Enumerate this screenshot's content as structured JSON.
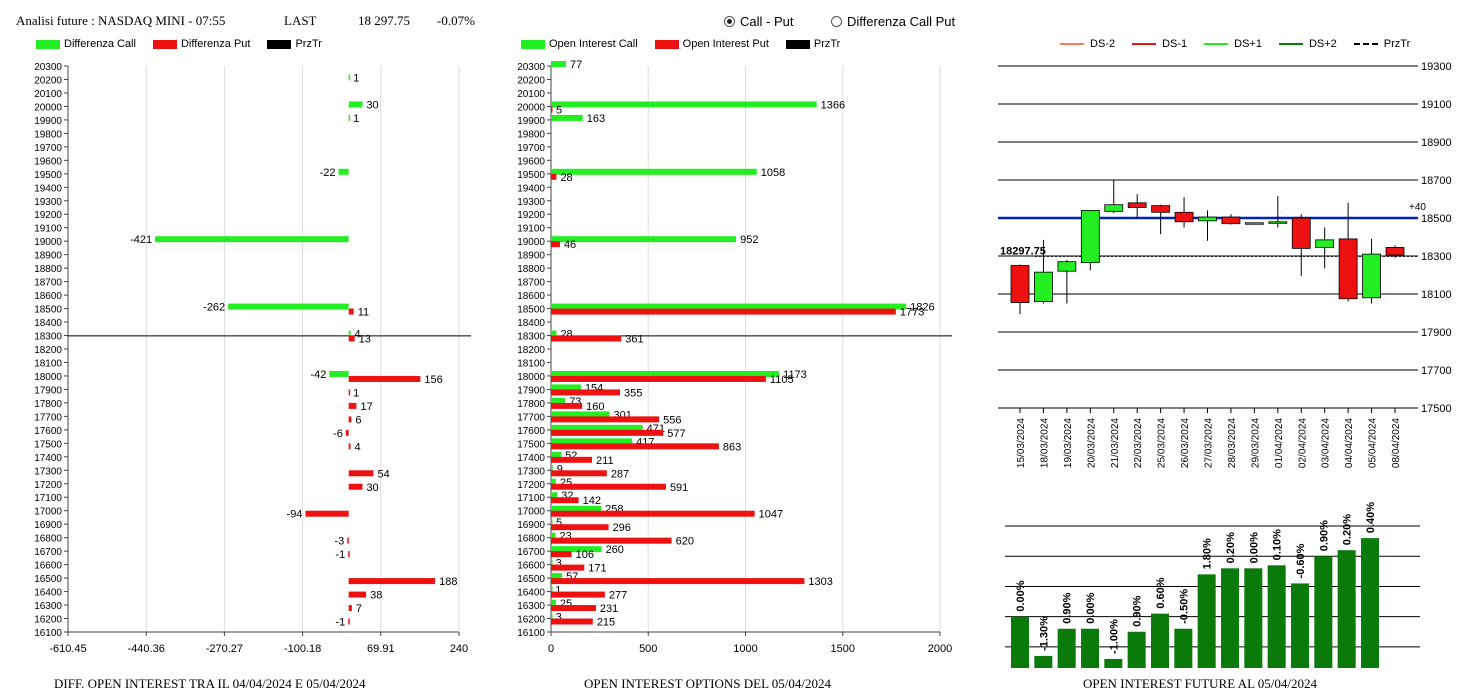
{
  "header": {
    "title": "Analisi future : NASDAQ MINI - 07:55",
    "last_label": "LAST",
    "last_value": "18 297.75",
    "change": "-0.07%"
  },
  "toggle": {
    "options": [
      {
        "label": "Call - Put",
        "selected": true
      },
      {
        "label": "Differenza Call Put",
        "selected": false
      }
    ]
  },
  "colors": {
    "call": "#22EE22",
    "put": "#EE1111",
    "price": "#000000",
    "price_line": "#0022BB",
    "future_bar": "#0A7A0A"
  },
  "chart_data": [
    {
      "type": "bar",
      "orientation": "horizontal",
      "title": "DIFF. OPEN INTEREST TRA IL 04/04/2024 E 05/04/2024",
      "legend": [
        "Differenza Call",
        "Differenza Put",
        "PrzTr"
      ],
      "xticks": [
        "-610.45",
        "-440.36",
        "-270.27",
        "-100.18",
        "69.91",
        "240"
      ],
      "xlim": [
        -610.45,
        240
      ],
      "ylim": [
        16100,
        20300
      ],
      "ystep": 100,
      "price": 18297.75,
      "call": [
        {
          "strike": 20200,
          "value": 1
        },
        {
          "strike": 20000,
          "value": 30
        },
        {
          "strike": 19900,
          "value": 1
        },
        {
          "strike": 19500,
          "value": -22
        },
        {
          "strike": 19000,
          "value": -421
        },
        {
          "strike": 18500,
          "value": -262
        },
        {
          "strike": 18300,
          "value": 4
        },
        {
          "strike": 18000,
          "value": -42
        }
      ],
      "put": [
        {
          "strike": 18500,
          "value": 11
        },
        {
          "strike": 18300,
          "value": 13
        },
        {
          "strike": 18000,
          "value": 156
        },
        {
          "strike": 17900,
          "value": 1
        },
        {
          "strike": 17800,
          "value": 17
        },
        {
          "strike": 17700,
          "value": 6
        },
        {
          "strike": 17600,
          "value": -6
        },
        {
          "strike": 17500,
          "value": 4
        },
        {
          "strike": 17300,
          "value": 54
        },
        {
          "strike": 17200,
          "value": 30
        },
        {
          "strike": 17000,
          "value": -94
        },
        {
          "strike": 16800,
          "value": -3
        },
        {
          "strike": 16700,
          "value": -1
        },
        {
          "strike": 16500,
          "value": 188
        },
        {
          "strike": 16400,
          "value": 38
        },
        {
          "strike": 16300,
          "value": 7
        },
        {
          "strike": 16200,
          "value": -1
        }
      ]
    },
    {
      "type": "bar",
      "orientation": "horizontal",
      "title": "OPEN INTEREST OPTIONS DEL 05/04/2024",
      "legend": [
        "Open Interest Call",
        "Open Interest Put",
        "PrzTr"
      ],
      "xticks": [
        "0",
        "500",
        "1000",
        "1500",
        "2000"
      ],
      "xlim": [
        0,
        2000
      ],
      "ylim": [
        16100,
        20300
      ],
      "ystep": 100,
      "price": 18297.75,
      "call": [
        {
          "strike": 20300,
          "value": 77
        },
        {
          "strike": 20000,
          "value": 1366
        },
        {
          "strike": 19900,
          "value": 163
        },
        {
          "strike": 19500,
          "value": 1058
        },
        {
          "strike": 19000,
          "value": 952
        },
        {
          "strike": 18500,
          "value": 1826
        },
        {
          "strike": 18300,
          "value": 28
        },
        {
          "strike": 18000,
          "value": 1173
        },
        {
          "strike": 17900,
          "value": 154
        },
        {
          "strike": 17800,
          "value": 73
        },
        {
          "strike": 17700,
          "value": 301
        },
        {
          "strike": 17600,
          "value": 471
        },
        {
          "strike": 17500,
          "value": 417
        },
        {
          "strike": 17400,
          "value": 52
        },
        {
          "strike": 17300,
          "value": 9
        },
        {
          "strike": 17200,
          "value": 25
        },
        {
          "strike": 17100,
          "value": 32
        },
        {
          "strike": 17000,
          "value": 258
        },
        {
          "strike": 16900,
          "value": 5
        },
        {
          "strike": 16800,
          "value": 23
        },
        {
          "strike": 16700,
          "value": 260
        },
        {
          "strike": 16600,
          "value": 3
        },
        {
          "strike": 16500,
          "value": 57
        },
        {
          "strike": 16400,
          "value": 1
        },
        {
          "strike": 16300,
          "value": 25
        },
        {
          "strike": 16200,
          "value": 3
        }
      ],
      "put": [
        {
          "strike": 20000,
          "value": 5
        },
        {
          "strike": 19500,
          "value": 28
        },
        {
          "strike": 19000,
          "value": 46
        },
        {
          "strike": 18500,
          "value": 1773
        },
        {
          "strike": 18300,
          "value": 361
        },
        {
          "strike": 18000,
          "value": 1105
        },
        {
          "strike": 17900,
          "value": 355
        },
        {
          "strike": 17800,
          "value": 160
        },
        {
          "strike": 17700,
          "value": 556
        },
        {
          "strike": 17600,
          "value": 577
        },
        {
          "strike": 17500,
          "value": 863
        },
        {
          "strike": 17400,
          "value": 211
        },
        {
          "strike": 17300,
          "value": 287
        },
        {
          "strike": 17200,
          "value": 591
        },
        {
          "strike": 17100,
          "value": 142
        },
        {
          "strike": 17000,
          "value": 1047
        },
        {
          "strike": 16900,
          "value": 296
        },
        {
          "strike": 16800,
          "value": 620
        },
        {
          "strike": 16700,
          "value": 106
        },
        {
          "strike": 16600,
          "value": 171
        },
        {
          "strike": 16500,
          "value": 1303
        },
        {
          "strike": 16400,
          "value": 277
        },
        {
          "strike": 16300,
          "value": 231
        },
        {
          "strike": 16200,
          "value": 215
        }
      ]
    },
    {
      "type": "candlestick",
      "legend": [
        "DS-2",
        "DS-1",
        "DS+1",
        "DS+2",
        "PrzTr"
      ],
      "legend_colors": [
        "#F08060",
        "#EE1111",
        "#22EE22",
        "#0A7A0A",
        "#000000"
      ],
      "yticks": [
        "19300",
        "19100",
        "18900",
        "18700",
        "18500",
        "18300",
        "18100",
        "17900",
        "17700",
        "17500"
      ],
      "ylim": [
        17500,
        19300
      ],
      "price_label": "18297.75",
      "price": 18297.75,
      "level": 18500,
      "level_label": "+40",
      "candles": [
        {
          "date": "15/03/2024",
          "open": 18250,
          "close": 18055,
          "high": 18255,
          "low": 17995
        },
        {
          "date": "18/03/2024",
          "open": 18060,
          "close": 18215,
          "high": 18385,
          "low": 18050
        },
        {
          "date": "19/03/2024",
          "open": 18220,
          "close": 18270,
          "high": 18280,
          "low": 18050
        },
        {
          "date": "20/03/2024",
          "open": 18265,
          "close": 18540,
          "high": 18540,
          "low": 18225
        },
        {
          "date": "21/03/2024",
          "open": 18535,
          "close": 18570,
          "high": 18700,
          "low": 18525
        },
        {
          "date": "22/03/2024",
          "open": 18580,
          "close": 18555,
          "high": 18625,
          "low": 18500
        },
        {
          "date": "25/03/2024",
          "open": 18565,
          "close": 18530,
          "high": 18570,
          "low": 18415
        },
        {
          "date": "26/03/2024",
          "open": 18530,
          "close": 18480,
          "high": 18610,
          "low": 18450
        },
        {
          "date": "27/03/2024",
          "open": 18485,
          "close": 18505,
          "high": 18540,
          "low": 18380
        },
        {
          "date": "28/03/2024",
          "open": 18505,
          "close": 18470,
          "high": 18520,
          "low": 18465
        },
        {
          "date": "29/03/2024",
          "open": 18475,
          "close": 18475,
          "high": 18475,
          "low": 18475
        },
        {
          "date": "01/04/2024",
          "open": 18480,
          "close": 18480,
          "high": 18615,
          "low": 18450
        },
        {
          "date": "02/04/2024",
          "open": 18500,
          "close": 18340,
          "high": 18520,
          "low": 18195
        },
        {
          "date": "03/04/2024",
          "open": 18345,
          "close": 18385,
          "high": 18450,
          "low": 18235
        },
        {
          "date": "04/04/2024",
          "open": 18390,
          "close": 18075,
          "high": 18580,
          "low": 18060
        },
        {
          "date": "05/04/2024",
          "open": 18080,
          "close": 18310,
          "high": 18390,
          "low": 18050
        },
        {
          "date": "08/04/2024",
          "open": 18345,
          "close": 18305,
          "high": 18355,
          "low": 18290
        }
      ]
    },
    {
      "type": "bar",
      "title": "OPEN INTEREST FUTURE AL 05/04/2024",
      "values": [
        100.0,
        98.7,
        99.6,
        99.6,
        98.6,
        99.5,
        100.1,
        99.6,
        101.4,
        101.6,
        101.6,
        101.7,
        101.1,
        102.0,
        102.2,
        102.6
      ],
      "ylim": [
        98.3,
        103.2
      ],
      "gridlines": [
        99.0,
        100.0,
        101.0,
        102.0,
        103.0
      ],
      "labels": [
        "0.00%",
        "-1.30%",
        "0.90%",
        "0.00%",
        "-1.00%",
        "0.90%",
        "0.60%",
        "-0.50%",
        "1.80%",
        "0.20%",
        "0.00%",
        "0.10%",
        "-0.60%",
        "0.90%",
        "0.20%",
        "0.40%"
      ]
    }
  ]
}
